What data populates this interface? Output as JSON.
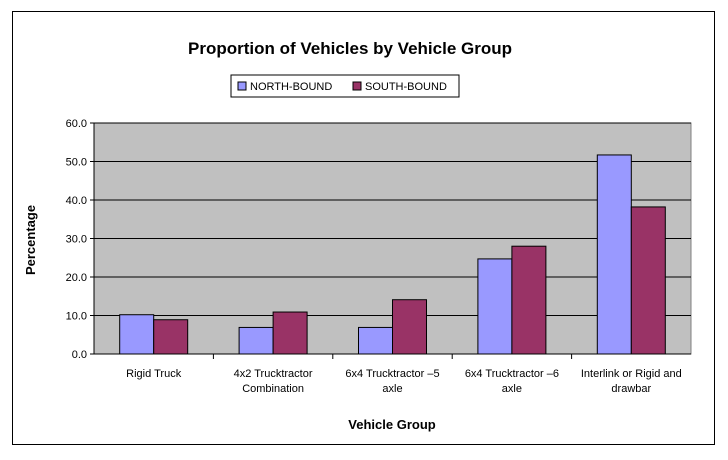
{
  "chart_data": {
    "type": "bar",
    "title": "Proportion of Vehicles by Vehicle Group",
    "xlabel": "Vehicle Group",
    "ylabel": "Percentage",
    "ylim": [
      0,
      60
    ],
    "yticks": [
      "0.0",
      "10.0",
      "20.0",
      "30.0",
      "40.0",
      "50.0",
      "60.0"
    ],
    "ytick_values": [
      0,
      10,
      20,
      30,
      40,
      50,
      60
    ],
    "grid": true,
    "legend_position": "top",
    "plot_background": "#c0c0c0",
    "categories": [
      [
        "Rigid Truck"
      ],
      [
        "4x2 Trucktractor",
        "Combination"
      ],
      [
        "6x4 Trucktractor –5",
        "axle"
      ],
      [
        "6x4 Trucktractor –6",
        "axle"
      ],
      [
        "Interlink or Rigid and",
        "drawbar"
      ]
    ],
    "series": [
      {
        "name": "NORTH-BOUND",
        "color": "#9999ff",
        "values": [
          10.2,
          6.9,
          6.9,
          24.7,
          51.7
        ]
      },
      {
        "name": "SOUTH-BOUND",
        "color": "#993366",
        "values": [
          8.9,
          10.9,
          14.1,
          28.0,
          38.2
        ]
      }
    ]
  }
}
